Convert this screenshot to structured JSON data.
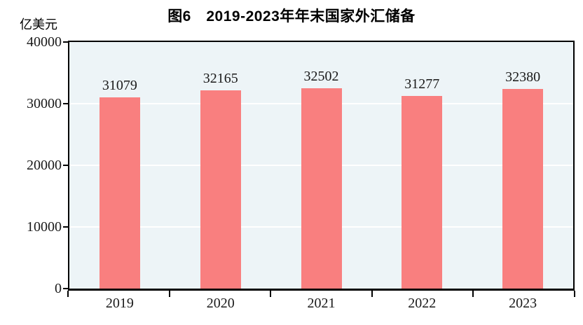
{
  "title": "图6　2019-2023年年末国家外汇储备",
  "unit_label": "亿美元",
  "chart_data": {
    "type": "bar",
    "title": "图6　2019-2023年年末国家外汇储备",
    "ylabel": "亿美元",
    "categories": [
      "2019",
      "2020",
      "2021",
      "2022",
      "2023"
    ],
    "values": [
      31079,
      32165,
      32502,
      31277,
      32380
    ],
    "ylim": [
      0,
      40000
    ],
    "y_ticks": [
      0,
      10000,
      20000,
      30000,
      40000
    ],
    "grid": "horizontal",
    "legend": "none",
    "colors": {
      "bar": "#F97F7F",
      "plot_background": "#EDF4F7",
      "gridline": "#FFFFFF",
      "axis": "#000000",
      "text": "#1A1A1A",
      "page_background": "#FFFFFF"
    }
  }
}
